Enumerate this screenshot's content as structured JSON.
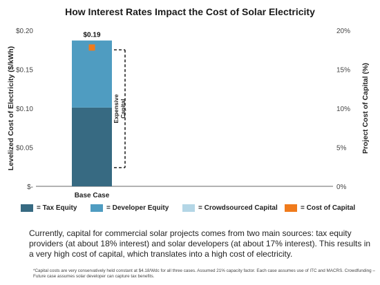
{
  "chart_data": {
    "type": "bar",
    "title": "How Interest Rates Impact the Cost of Solar Electricity",
    "ylabel": "Levelized Cost of Electricity ($/kWh)",
    "y2label": "Project Cost of Capital (%)",
    "ylim": [
      0,
      0.2
    ],
    "y2lim": [
      0,
      20
    ],
    "yticks": [
      "$-",
      "$0.05",
      "$0.10",
      "$0.15",
      "$0.20"
    ],
    "y2ticks": [
      "0%",
      "5%",
      "10%",
      "15%",
      "20%"
    ],
    "categories": [
      "Base Case"
    ],
    "stacked": true,
    "series": [
      {
        "name": "= Tax Equity",
        "values": [
          0.101
        ],
        "color": "#376a82"
      },
      {
        "name": "= Developer Equity",
        "values": [
          0.086
        ],
        "color": "#4f9cc1"
      },
      {
        "name": "= Crowdsourced Capital",
        "values": [
          0
        ],
        "color": "#b4d6e6"
      }
    ],
    "secondary_series": {
      "name": "= Cost of Capital",
      "values": [
        17.8
      ],
      "color": "#f07b1c",
      "marker": "square"
    },
    "total_labels": [
      "$0.19"
    ],
    "annotation": {
      "lines": [
        "Expensive",
        "Capital"
      ],
      "from": 2.4,
      "to": 17.5
    },
    "grid": false,
    "legend_position": "bottom"
  },
  "description_text": "Currently, capital for commercial solar projects comes from two main sources: tax equity providers (at about 18% interest) and solar developers (at about 17% interest). This results in a very high cost of capital, which translates into a high cost of electricity.",
  "footnote_text": "*Capital costs are very conservatively held constant at $4.18/Wdc for all three cases. Assumed 21% capacity factor. Each case assumes use of ITC and MACRS. Crowdfunding – Future case assumes solar developer can capture tax benefits."
}
